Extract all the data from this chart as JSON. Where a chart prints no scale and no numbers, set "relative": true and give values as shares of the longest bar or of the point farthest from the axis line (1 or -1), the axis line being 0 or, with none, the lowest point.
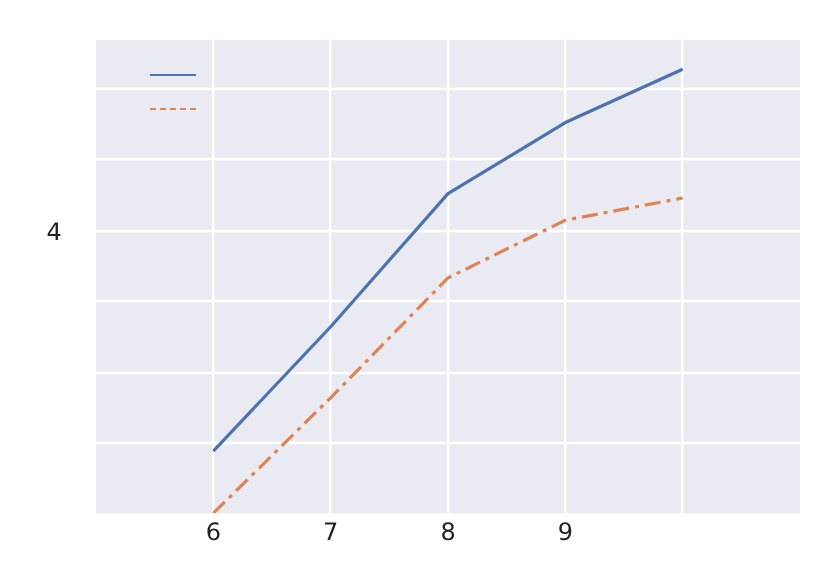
{
  "chart_data": {
    "type": "line",
    "relative": true,
    "x": [
      6,
      7,
      8,
      9,
      10
    ],
    "xlim": [
      5,
      11
    ],
    "xticks": [
      6,
      7,
      8,
      9,
      {
        "value": 10,
        "label": null
      }
    ],
    "series": [
      {
        "color": "#4c72b0",
        "line_style": "solid",
        "values": [
          0.14,
          0.42,
          0.72,
          0.88,
          1
        ]
      },
      {
        "color": "#dd8452",
        "line_style": "dashed",
        "values": [
          0,
          0.26,
          0.53,
          0.66,
          0.71
        ]
      }
    ],
    "annotations": [
      "4"
    ],
    "grid": true,
    "marker": "none"
  }
}
